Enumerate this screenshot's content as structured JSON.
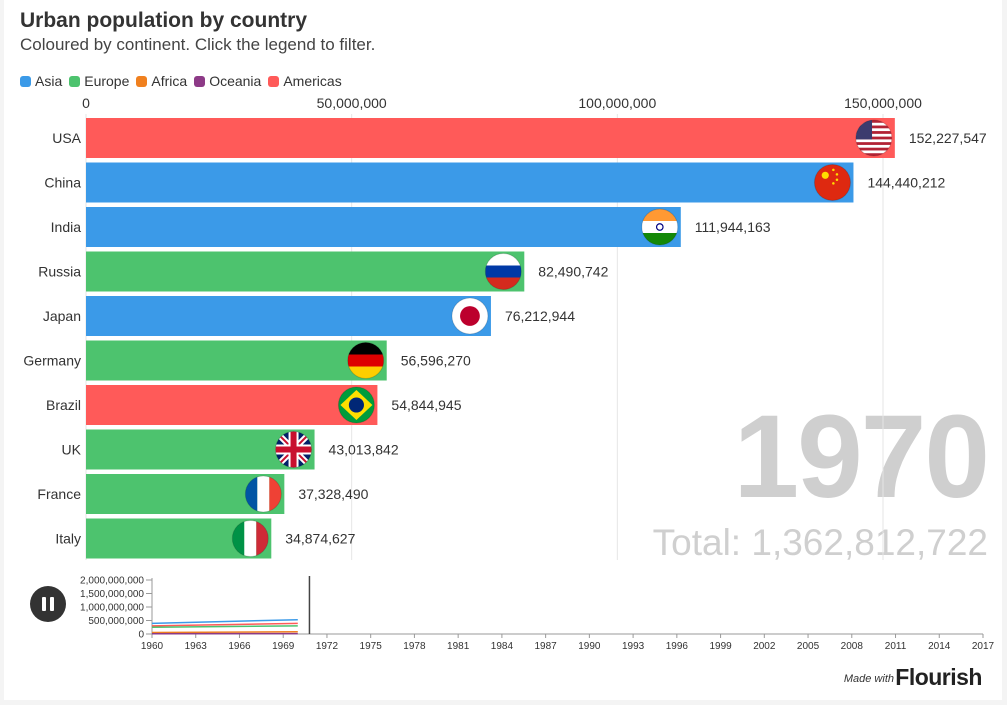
{
  "header": {
    "title": "Urban population by country",
    "subtitle": "Coloured by continent. Click the legend to filter."
  },
  "legend": [
    {
      "label": "Asia",
      "color": "#3b9ae8"
    },
    {
      "label": "Europe",
      "color": "#4dc36e"
    },
    {
      "label": "Africa",
      "color": "#f0801f"
    },
    {
      "label": "Oceania",
      "color": "#8d3a87"
    },
    {
      "label": "Americas",
      "color": "#ff5a59"
    }
  ],
  "chart_data": {
    "type": "bar",
    "orientation": "horizontal",
    "title": "Urban population by country",
    "subtitle": "Coloured by continent. Click the legend to filter.",
    "xlim": [
      0,
      160000000
    ],
    "xticks": [
      "0",
      "50,000,000",
      "100,000,000",
      "150,000,000"
    ],
    "xtick_values": [
      0,
      50000000,
      100000000,
      150000000
    ],
    "grid": true,
    "legend_position": "top-left",
    "bars": [
      {
        "country": "USA",
        "value": 152227547,
        "label": "152,227,547",
        "continent": "Americas",
        "flag": "usa-flag-icon"
      },
      {
        "country": "China",
        "value": 144440212,
        "label": "144,440,212",
        "continent": "Asia",
        "flag": "china-flag-icon"
      },
      {
        "country": "India",
        "value": 111944163,
        "label": "111,944,163",
        "continent": "Asia",
        "flag": "india-flag-icon"
      },
      {
        "country": "Russia",
        "value": 82490742,
        "label": "82,490,742",
        "continent": "Europe",
        "flag": "russia-flag-icon"
      },
      {
        "country": "Japan",
        "value": 76212944,
        "label": "76,212,944",
        "continent": "Asia",
        "flag": "japan-flag-icon"
      },
      {
        "country": "Germany",
        "value": 56596270,
        "label": "56,596,270",
        "continent": "Europe",
        "flag": "germany-flag-icon"
      },
      {
        "country": "Brazil",
        "value": 54844945,
        "label": "54,844,945",
        "continent": "Americas",
        "flag": "brazil-flag-icon"
      },
      {
        "country": "UK",
        "value": 43013842,
        "label": "43,013,842",
        "continent": "Europe",
        "flag": "uk-flag-icon"
      },
      {
        "country": "France",
        "value": 37328490,
        "label": "37,328,490",
        "continent": "Europe",
        "flag": "france-flag-icon"
      },
      {
        "country": "Italy",
        "value": 34874627,
        "label": "34,874,627",
        "continent": "Europe",
        "flag": "italy-flag-icon"
      }
    ],
    "year": "1970",
    "total": "Total: 1,362,812,722",
    "timeline": {
      "yticks": [
        "2,000,000,000",
        "1,500,000,000",
        "1,000,000,000",
        "500,000,000",
        "0"
      ],
      "ytick_values": [
        2000000000,
        1500000000,
        1000000000,
        500000000,
        0
      ],
      "xticks": [
        "1960",
        "1963",
        "1966",
        "1969",
        "1972",
        "1975",
        "1978",
        "1981",
        "1984",
        "1987",
        "1990",
        "1993",
        "1996",
        "1999",
        "2002",
        "2005",
        "2008",
        "2011",
        "2014",
        "2017"
      ],
      "xlim": [
        1960,
        2017
      ],
      "current_year": 1970.8,
      "series": [
        {
          "continent": "Asia",
          "values": [
            [
              1960,
              395000000
            ],
            [
              1970,
              530000000
            ]
          ]
        },
        {
          "continent": "Americas",
          "values": [
            [
              1960,
              300000000
            ],
            [
              1970,
              395000000
            ]
          ]
        },
        {
          "continent": "Europe",
          "values": [
            [
              1960,
              250000000
            ],
            [
              1970,
              300000000
            ]
          ]
        },
        {
          "continent": "Africa",
          "values": [
            [
              1960,
              55000000
            ],
            [
              1970,
              85000000
            ]
          ]
        },
        {
          "continent": "Oceania",
          "values": [
            [
              1960,
              10000000
            ],
            [
              1970,
              14000000
            ]
          ]
        }
      ]
    }
  },
  "controls": {
    "play_state": "playing",
    "play_icon": "pause-icon"
  },
  "footer": {
    "made_with": "Made with",
    "brand": "Flourish"
  }
}
